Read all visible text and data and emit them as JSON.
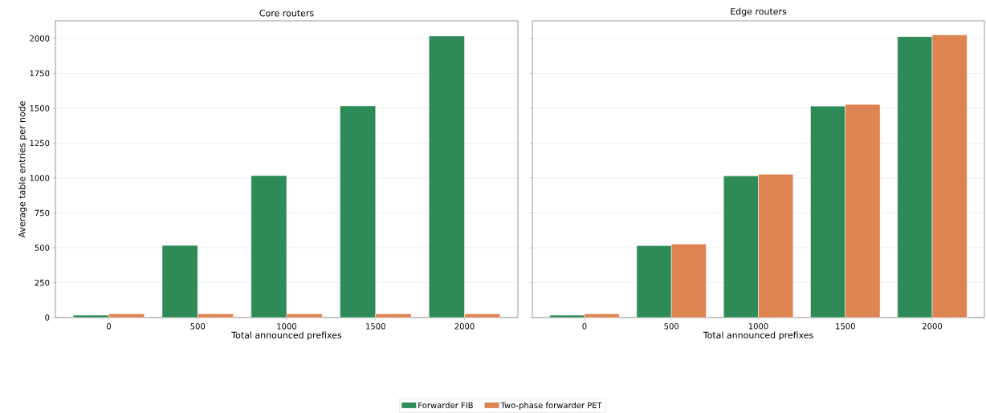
{
  "chart_data": [
    {
      "type": "bar",
      "title": "Core routers",
      "xlabel": "Total announced prefixes",
      "ylabel": "Average table entries per node",
      "categories": [
        "0",
        "500",
        "1000",
        "1500",
        "2000"
      ],
      "series": [
        {
          "name": "Forwarder FIB",
          "color": "#2e8b57",
          "values": [
            17,
            517,
            1017,
            1517,
            2017
          ]
        },
        {
          "name": "Two-phase forwarder PET",
          "color": "#dd8452",
          "values": [
            27,
            27,
            27,
            27,
            27
          ]
        }
      ],
      "ylim": [
        0,
        2126
      ],
      "yticks": [
        0,
        250,
        500,
        750,
        1000,
        1250,
        1500,
        1750,
        2000
      ],
      "grid": "y",
      "legend": "bottom"
    },
    {
      "type": "bar",
      "title": "Edge routers",
      "xlabel": "Total announced prefixes",
      "categories": [
        "0",
        "500",
        "1000",
        "1500",
        "2000"
      ],
      "series": [
        {
          "color": "#2e8b57",
          "values": [
            17,
            515,
            1015,
            1515,
            2013
          ]
        },
        {
          "color": "#dd8452",
          "values": [
            27,
            527,
            1027,
            1527,
            2025
          ]
        }
      ],
      "ylim": [
        0,
        2126
      ],
      "yticks": [
        0,
        250,
        500,
        750,
        1000,
        1250,
        1500,
        1750,
        2000
      ],
      "grid": "y",
      "tick_labels": "x"
    }
  ]
}
